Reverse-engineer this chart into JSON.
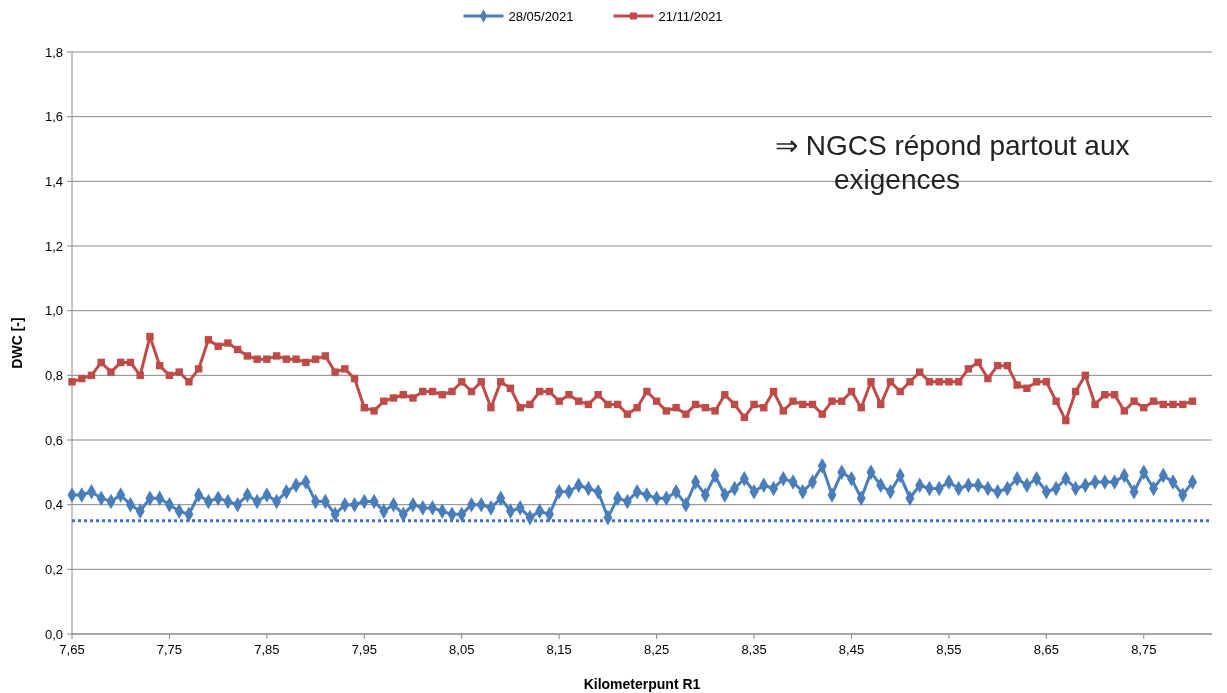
{
  "chart_data": {
    "type": "line",
    "xlabel": "Kilometerpunt R1",
    "ylabel": "DWC [-]",
    "x": [
      7.65,
      7.66,
      7.67,
      7.68,
      7.69,
      7.7,
      7.71,
      7.72,
      7.73,
      7.74,
      7.75,
      7.76,
      7.77,
      7.78,
      7.79,
      7.8,
      7.81,
      7.82,
      7.83,
      7.84,
      7.85,
      7.86,
      7.87,
      7.88,
      7.89,
      7.9,
      7.91,
      7.92,
      7.93,
      7.94,
      7.95,
      7.96,
      7.97,
      7.98,
      7.99,
      8.0,
      8.01,
      8.02,
      8.03,
      8.04,
      8.05,
      8.06,
      8.07,
      8.08,
      8.09,
      8.1,
      8.11,
      8.12,
      8.13,
      8.14,
      8.15,
      8.16,
      8.17,
      8.18,
      8.19,
      8.2,
      8.21,
      8.22,
      8.23,
      8.24,
      8.25,
      8.26,
      8.27,
      8.28,
      8.29,
      8.3,
      8.31,
      8.32,
      8.33,
      8.34,
      8.35,
      8.36,
      8.37,
      8.38,
      8.39,
      8.4,
      8.41,
      8.42,
      8.43,
      8.44,
      8.45,
      8.46,
      8.47,
      8.48,
      8.49,
      8.5,
      8.51,
      8.52,
      8.53,
      8.54,
      8.55,
      8.56,
      8.57,
      8.58,
      8.59,
      8.6,
      8.61,
      8.62,
      8.63,
      8.64,
      8.65,
      8.66,
      8.67,
      8.68,
      8.69,
      8.7,
      8.71,
      8.72,
      8.73,
      8.74,
      8.75,
      8.76,
      8.77,
      8.78,
      8.79,
      8.8
    ],
    "series": [
      {
        "name": "28/05/2021",
        "color": "#4a7ebb",
        "marker": "diamond",
        "values": [
          0.43,
          0.43,
          0.44,
          0.42,
          0.41,
          0.43,
          0.4,
          0.38,
          0.42,
          0.42,
          0.4,
          0.38,
          0.37,
          0.43,
          0.41,
          0.42,
          0.41,
          0.4,
          0.43,
          0.41,
          0.43,
          0.41,
          0.44,
          0.46,
          0.47,
          0.41,
          0.41,
          0.37,
          0.4,
          0.4,
          0.41,
          0.41,
          0.38,
          0.4,
          0.37,
          0.4,
          0.39,
          0.39,
          0.38,
          0.37,
          0.37,
          0.4,
          0.4,
          0.39,
          0.42,
          0.38,
          0.39,
          0.36,
          0.38,
          0.37,
          0.44,
          0.44,
          0.46,
          0.45,
          0.44,
          0.36,
          0.42,
          0.41,
          0.44,
          0.43,
          0.42,
          0.42,
          0.44,
          0.4,
          0.47,
          0.43,
          0.49,
          0.43,
          0.45,
          0.48,
          0.44,
          0.46,
          0.45,
          0.48,
          0.47,
          0.44,
          0.47,
          0.52,
          0.43,
          0.5,
          0.48,
          0.42,
          0.5,
          0.46,
          0.44,
          0.49,
          0.42,
          0.46,
          0.45,
          0.45,
          0.47,
          0.45,
          0.46,
          0.46,
          0.45,
          0.44,
          0.45,
          0.48,
          0.46,
          0.48,
          0.44,
          0.45,
          0.48,
          0.45,
          0.46,
          0.47,
          0.47,
          0.47,
          0.49,
          0.44,
          0.5,
          0.45,
          0.49,
          0.47,
          0.43,
          0.47
        ]
      },
      {
        "name": "21/11/2021",
        "color": "#be4b48",
        "marker": "square",
        "values": [
          0.78,
          0.79,
          0.8,
          0.84,
          0.81,
          0.84,
          0.84,
          0.8,
          0.92,
          0.83,
          0.8,
          0.81,
          0.78,
          0.82,
          0.91,
          0.89,
          0.9,
          0.88,
          0.86,
          0.85,
          0.85,
          0.86,
          0.85,
          0.85,
          0.84,
          0.85,
          0.86,
          0.81,
          0.82,
          0.79,
          0.7,
          0.69,
          0.72,
          0.73,
          0.74,
          0.73,
          0.75,
          0.75,
          0.74,
          0.75,
          0.78,
          0.75,
          0.78,
          0.7,
          0.78,
          0.76,
          0.7,
          0.71,
          0.75,
          0.75,
          0.72,
          0.74,
          0.72,
          0.71,
          0.74,
          0.71,
          0.71,
          0.68,
          0.7,
          0.75,
          0.72,
          0.69,
          0.7,
          0.68,
          0.71,
          0.7,
          0.69,
          0.74,
          0.71,
          0.67,
          0.71,
          0.7,
          0.75,
          0.69,
          0.72,
          0.71,
          0.71,
          0.68,
          0.72,
          0.72,
          0.75,
          0.7,
          0.78,
          0.71,
          0.78,
          0.75,
          0.78,
          0.81,
          0.78,
          0.78,
          0.78,
          0.78,
          0.82,
          0.84,
          0.79,
          0.83,
          0.83,
          0.77,
          0.76,
          0.78,
          0.78,
          0.72,
          0.66,
          0.75,
          0.8,
          0.71,
          0.74,
          0.74,
          0.69,
          0.72,
          0.7,
          0.72,
          0.71,
          0.71,
          0.71,
          0.72
        ]
      }
    ],
    "xlim": [
      7.65,
      8.82
    ],
    "xticks": [
      {
        "value": 7.65,
        "label": "7,65"
      },
      {
        "value": 7.75,
        "label": "7,75"
      },
      {
        "value": 7.85,
        "label": "7,85"
      },
      {
        "value": 7.95,
        "label": "7,95"
      },
      {
        "value": 8.05,
        "label": "8,05"
      },
      {
        "value": 8.15,
        "label": "8,15"
      },
      {
        "value": 8.25,
        "label": "8,25"
      },
      {
        "value": 8.35,
        "label": "8,35"
      },
      {
        "value": 8.45,
        "label": "8,45"
      },
      {
        "value": 8.55,
        "label": "8,55"
      },
      {
        "value": 8.65,
        "label": "8,65"
      },
      {
        "value": 8.75,
        "label": "8,75"
      }
    ],
    "ylim": [
      0,
      1.8
    ],
    "yticks": [
      {
        "value": 0,
        "label": "0,0"
      },
      {
        "value": 0.2,
        "label": "0,2"
      },
      {
        "value": 0.4,
        "label": "0,4"
      },
      {
        "value": 0.6,
        "label": "0,6"
      },
      {
        "value": 0.8,
        "label": "0,8"
      },
      {
        "value": 1.0,
        "label": "1,0"
      },
      {
        "value": 1.2,
        "label": "1,2"
      },
      {
        "value": 1.4,
        "label": "1,4"
      },
      {
        "value": 1.6,
        "label": "1,6"
      },
      {
        "value": 1.8,
        "label": "1,8"
      }
    ],
    "ref_lines": [
      {
        "axis": "y",
        "value": 0.35,
        "color": "#4472c4",
        "line_style": "dotted"
      }
    ],
    "annotations": [
      "⇒  NGCS répond partout aux exigences"
    ],
    "grid": "y",
    "legend": "top"
  }
}
